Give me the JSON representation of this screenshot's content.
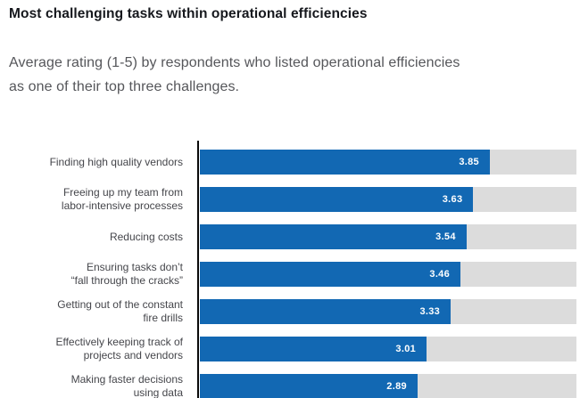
{
  "chart_data": {
    "type": "bar",
    "orientation": "horizontal",
    "title": "Most challenging tasks within operational efficiencies",
    "subtitle": "Average rating (1-5) by respondents who listed operational efficiencies as one of their top three challenges.",
    "categories": [
      "Finding high quality vendors",
      "Freeing up my team from labor-intensive processes",
      "Reducing costs",
      "Ensuring tasks don’t “fall through the cracks”",
      "Getting out of the constant fire drills",
      "Effectively keeping track of projects and vendors",
      "Making faster decisions using data"
    ],
    "category_lines": [
      [
        "Finding high quality vendors"
      ],
      [
        "Freeing up my team from",
        "labor-intensive processes"
      ],
      [
        "Reducing costs"
      ],
      [
        "Ensuring tasks don’t",
        "“fall through the cracks”"
      ],
      [
        "Getting out of the constant",
        "fire drills"
      ],
      [
        "Effectively keeping track of",
        "projects and vendors"
      ],
      [
        "Making faster decisions",
        "using data"
      ]
    ],
    "values": [
      3.85,
      3.63,
      3.54,
      3.46,
      3.33,
      3.01,
      2.89
    ],
    "value_labels": [
      "3.85",
      "3.63",
      "3.54",
      "3.46",
      "3.33",
      "3.01",
      "2.89"
    ],
    "xlabel": "",
    "ylabel": "",
    "xlim": [
      0,
      5
    ],
    "grid": false,
    "legend": false,
    "bar_color": "#1268b3",
    "track_color": "#dcdcdc",
    "value_label_color": "#ffffff"
  }
}
